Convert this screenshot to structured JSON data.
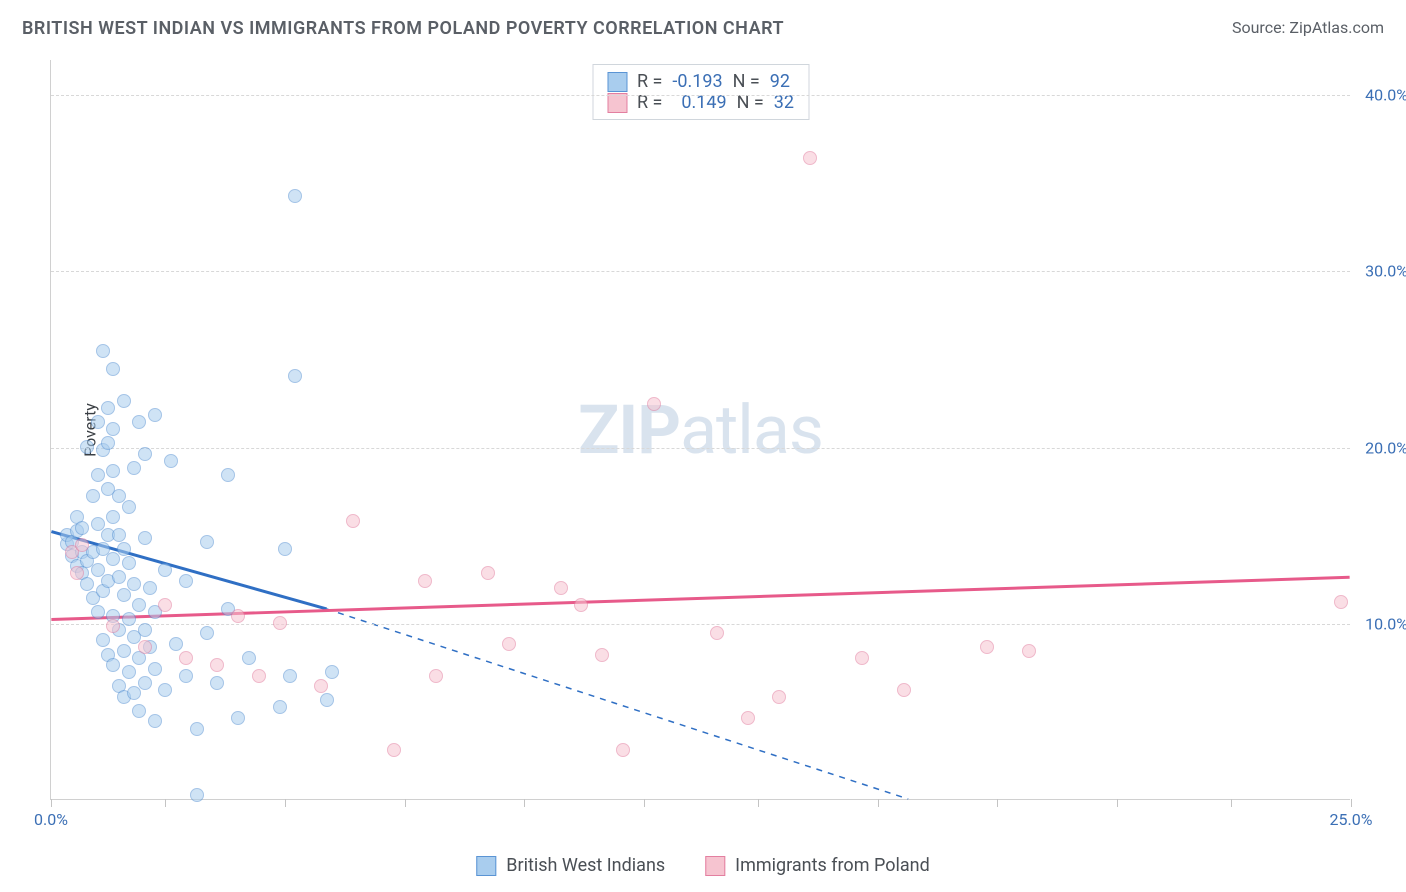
{
  "title": "BRITISH WEST INDIAN VS IMMIGRANTS FROM POLAND POVERTY CORRELATION CHART",
  "source": "Source: ZipAtlas.com",
  "ylabel": "Poverty",
  "watermark_a": "ZIP",
  "watermark_b": "atlas",
  "chart": {
    "type": "scatter",
    "xlim": [
      0,
      25
    ],
    "ylim": [
      0,
      42
    ],
    "xticks": [
      0,
      2.2,
      4.5,
      6.8,
      9.1,
      11.4,
      13.6,
      15.9,
      18.2,
      20.5,
      22.7,
      25
    ],
    "xtick_labels": {
      "0": "0.0%",
      "25": "25.0%"
    },
    "yticks": [
      10,
      20,
      30,
      40
    ],
    "ytick_labels": [
      "10.0%",
      "20.0%",
      "30.0%",
      "40.0%"
    ],
    "grid_color": "#d8d8d8",
    "axis_color": "#d0d0d0",
    "background_color": "#ffffff",
    "axis_label_color": "#3b6fb5",
    "point_radius": 7,
    "point_opacity": 0.55
  },
  "series": [
    {
      "name": "British West Indians",
      "label": "British West Indians",
      "R_label": "R =",
      "R": "-0.193",
      "N_label": "N =",
      "N": "92",
      "fill": "#a9cdee",
      "stroke": "#5a94d4",
      "trend_color": "#2f6fc4",
      "trend_solid": [
        [
          0,
          15.2
        ],
        [
          5.3,
          10.8
        ]
      ],
      "trend_dash": [
        [
          5.3,
          10.8
        ],
        [
          16.5,
          0
        ]
      ],
      "points": [
        [
          0.3,
          14.5
        ],
        [
          0.3,
          15.0
        ],
        [
          0.4,
          13.8
        ],
        [
          0.4,
          14.6
        ],
        [
          0.5,
          13.2
        ],
        [
          0.5,
          15.2
        ],
        [
          0.5,
          16.0
        ],
        [
          0.6,
          12.8
        ],
        [
          0.6,
          14.0
        ],
        [
          0.6,
          15.4
        ],
        [
          0.7,
          12.2
        ],
        [
          0.7,
          13.5
        ],
        [
          0.7,
          20.0
        ],
        [
          0.8,
          11.4
        ],
        [
          0.8,
          14.0
        ],
        [
          0.8,
          17.2
        ],
        [
          0.9,
          10.6
        ],
        [
          0.9,
          13.0
        ],
        [
          0.9,
          15.6
        ],
        [
          0.9,
          18.4
        ],
        [
          0.9,
          21.4
        ],
        [
          1.0,
          9.0
        ],
        [
          1.0,
          11.8
        ],
        [
          1.0,
          14.2
        ],
        [
          1.0,
          19.8
        ],
        [
          1.0,
          25.4
        ],
        [
          1.1,
          8.2
        ],
        [
          1.1,
          12.4
        ],
        [
          1.1,
          15.0
        ],
        [
          1.1,
          17.6
        ],
        [
          1.1,
          20.2
        ],
        [
          1.1,
          22.2
        ],
        [
          1.2,
          7.6
        ],
        [
          1.2,
          10.4
        ],
        [
          1.2,
          13.6
        ],
        [
          1.2,
          16.0
        ],
        [
          1.2,
          18.6
        ],
        [
          1.2,
          21.0
        ],
        [
          1.2,
          24.4
        ],
        [
          1.3,
          6.4
        ],
        [
          1.3,
          9.6
        ],
        [
          1.3,
          12.6
        ],
        [
          1.3,
          15.0
        ],
        [
          1.3,
          17.2
        ],
        [
          1.4,
          5.8
        ],
        [
          1.4,
          8.4
        ],
        [
          1.4,
          11.6
        ],
        [
          1.4,
          14.2
        ],
        [
          1.4,
          22.6
        ],
        [
          1.5,
          7.2
        ],
        [
          1.5,
          10.2
        ],
        [
          1.5,
          13.4
        ],
        [
          1.5,
          16.6
        ],
        [
          1.6,
          6.0
        ],
        [
          1.6,
          9.2
        ],
        [
          1.6,
          12.2
        ],
        [
          1.6,
          18.8
        ],
        [
          1.7,
          5.0
        ],
        [
          1.7,
          8.0
        ],
        [
          1.7,
          11.0
        ],
        [
          1.7,
          21.4
        ],
        [
          1.8,
          6.6
        ],
        [
          1.8,
          9.6
        ],
        [
          1.8,
          14.8
        ],
        [
          1.8,
          19.6
        ],
        [
          1.9,
          8.6
        ],
        [
          1.9,
          12.0
        ],
        [
          2.0,
          4.4
        ],
        [
          2.0,
          7.4
        ],
        [
          2.0,
          10.6
        ],
        [
          2.0,
          21.8
        ],
        [
          2.2,
          6.2
        ],
        [
          2.2,
          13.0
        ],
        [
          2.3,
          19.2
        ],
        [
          2.4,
          8.8
        ],
        [
          2.6,
          7.0
        ],
        [
          2.6,
          12.4
        ],
        [
          2.8,
          4.0
        ],
        [
          3.0,
          9.4
        ],
        [
          3.0,
          14.6
        ],
        [
          3.2,
          6.6
        ],
        [
          3.4,
          10.8
        ],
        [
          3.4,
          18.4
        ],
        [
          3.6,
          4.6
        ],
        [
          3.8,
          8.0
        ],
        [
          4.4,
          5.2
        ],
        [
          4.5,
          14.2
        ],
        [
          4.6,
          7.0
        ],
        [
          4.7,
          24.0
        ],
        [
          4.7,
          34.2
        ],
        [
          5.3,
          5.6
        ],
        [
          2.8,
          0.2
        ],
        [
          5.4,
          7.2
        ]
      ]
    },
    {
      "name": "Immigrants from Poland",
      "label": "Immigrants from Poland",
      "R_label": "R =",
      "R": "0.149",
      "N_label": "N =",
      "N": "32",
      "fill": "#f6c4d0",
      "stroke": "#e37fa0",
      "trend_color": "#e75a8a",
      "trend_solid": [
        [
          0,
          10.2
        ],
        [
          25,
          12.6
        ]
      ],
      "trend_dash": null,
      "points": [
        [
          0.4,
          14.0
        ],
        [
          0.5,
          12.8
        ],
        [
          0.6,
          14.4
        ],
        [
          1.2,
          9.8
        ],
        [
          1.8,
          8.6
        ],
        [
          2.2,
          11.0
        ],
        [
          2.6,
          8.0
        ],
        [
          3.2,
          7.6
        ],
        [
          3.6,
          10.4
        ],
        [
          4.0,
          7.0
        ],
        [
          4.4,
          10.0
        ],
        [
          5.2,
          6.4
        ],
        [
          5.8,
          15.8
        ],
        [
          6.6,
          2.8
        ],
        [
          7.2,
          12.4
        ],
        [
          7.4,
          7.0
        ],
        [
          8.4,
          12.8
        ],
        [
          8.8,
          8.8
        ],
        [
          9.8,
          12.0
        ],
        [
          10.2,
          11.0
        ],
        [
          11.0,
          2.8
        ],
        [
          11.6,
          22.4
        ],
        [
          12.8,
          9.4
        ],
        [
          13.4,
          4.6
        ],
        [
          14.0,
          5.8
        ],
        [
          14.6,
          36.4
        ],
        [
          15.6,
          8.0
        ],
        [
          16.4,
          6.2
        ],
        [
          18.0,
          8.6
        ],
        [
          18.8,
          8.4
        ],
        [
          24.8,
          11.2
        ],
        [
          10.6,
          8.2
        ]
      ]
    }
  ],
  "colors": {
    "title": "#5a5f66",
    "watermark": "#d9e3ee",
    "legend_text": "#4a4f55",
    "stat_value": "#3b6fb5"
  }
}
